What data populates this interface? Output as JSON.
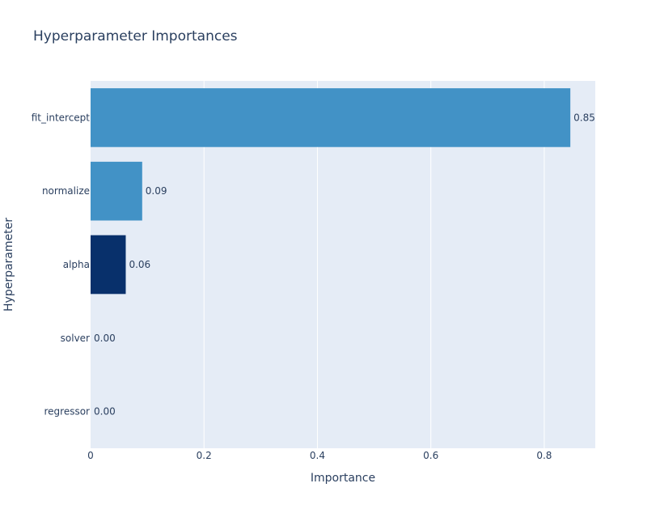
{
  "chart_data": {
    "type": "bar",
    "orientation": "horizontal",
    "title": "Hyperparameter Importances",
    "xlabel": "Importance",
    "ylabel": "Hyperparameter",
    "categories": [
      "regressor",
      "solver",
      "alpha",
      "normalize",
      "fit_intercept"
    ],
    "values": [
      0.0,
      0.0,
      0.062,
      0.091,
      0.846
    ],
    "value_labels": [
      "0.00",
      "0.00",
      "0.06",
      "0.09",
      "0.85"
    ],
    "bar_colors": [
      "#f7fbff",
      "#f7fbff",
      "#08306b",
      "#4292c6",
      "#4292c6"
    ],
    "xlim": [
      0,
      0.89
    ],
    "xticks": [
      0,
      0.2,
      0.4,
      0.6,
      0.8
    ],
    "xtick_labels": [
      "0",
      "0.2",
      "0.4",
      "0.6",
      "0.8"
    ],
    "grid": true,
    "plot_background": "#e5ecf6",
    "gridline_color": "#ffffff",
    "text_color": "#2a3f5f"
  }
}
